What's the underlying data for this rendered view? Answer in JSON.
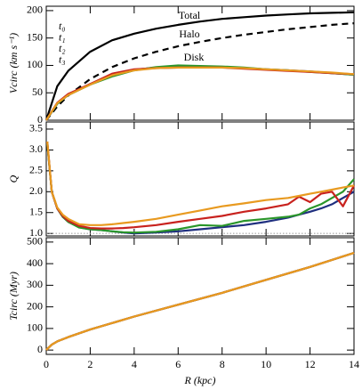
{
  "chart_data": [
    {
      "type": "line",
      "ylabel": "Vcirc (km s⁻¹)",
      "xlim": [
        0,
        14
      ],
      "xticks": [
        0,
        2,
        4,
        6,
        8,
        10,
        12,
        14
      ],
      "ylim": [
        0,
        208
      ],
      "yticks": [
        0,
        50,
        100,
        150,
        200
      ],
      "legend": "upper left",
      "annotations": [
        "Disk"
      ],
      "x": [
        0,
        0.5,
        1,
        2,
        3,
        4,
        5,
        6,
        7,
        8,
        9,
        10,
        11,
        12,
        13,
        14
      ],
      "series": [
        {
          "name": "Total",
          "color": "#000000",
          "dash": false,
          "values": [
            0,
            62,
            90,
            125,
            146,
            158,
            167,
            174,
            180,
            185,
            188,
            191,
            193,
            195,
            196,
            197
          ]
        },
        {
          "name": "Halo",
          "color": "#000000",
          "dash": true,
          "values": [
            0,
            25,
            45,
            75,
            97,
            113,
            125,
            135,
            143,
            150,
            156,
            161,
            166,
            170,
            174,
            177
          ]
        },
        {
          "name": "t₀",
          "color": "#1f2f7f",
          "values": [
            0,
            30,
            46,
            66,
            82,
            92,
            96,
            97,
            97,
            97,
            95,
            93,
            91,
            89,
            86,
            83
          ]
        },
        {
          "name": "t₁",
          "color": "#2a962a",
          "values": [
            0,
            30,
            46,
            65,
            80,
            91,
            97,
            100,
            99,
            98,
            96,
            93,
            91,
            88,
            86,
            83
          ]
        },
        {
          "name": "t₂",
          "color": "#c8221e",
          "values": [
            0,
            32,
            48,
            66,
            85,
            93,
            95,
            96,
            96,
            96,
            94,
            92,
            90,
            88,
            86,
            84
          ]
        },
        {
          "name": "t₃",
          "color": "#e89a20",
          "values": [
            0,
            31,
            46,
            65,
            82,
            91,
            95,
            96,
            96,
            96,
            95,
            93,
            91,
            89,
            87,
            84
          ]
        }
      ]
    },
    {
      "type": "line",
      "ylabel": "Q",
      "xlim": [
        0,
        14
      ],
      "xticks": [
        0,
        2,
        4,
        6,
        8,
        10,
        12,
        14
      ],
      "ylim": [
        0.94,
        3.67
      ],
      "yticks": [
        {
          "value": 1,
          "label": "1.0"
        },
        1.5,
        {
          "value": 2,
          "label": "2.0"
        },
        2.5,
        {
          "value": 3,
          "label": "3.0"
        },
        3.5
      ],
      "hline": 1,
      "x": [
        0.05,
        0.25,
        0.5,
        0.75,
        1,
        1.5,
        2,
        2.5,
        3,
        3.5,
        4,
        5,
        6,
        7,
        8,
        9,
        10,
        11,
        11.5,
        12,
        12.5,
        13,
        13.5,
        14
      ],
      "series": [
        {
          "color": "#1f2f7f",
          "values": [
            3.15,
            2.0,
            1.6,
            1.4,
            1.28,
            1.15,
            1.1,
            1.08,
            1.05,
            1.02,
            1.0,
            1.02,
            1.05,
            1.1,
            1.15,
            1.2,
            1.28,
            1.38,
            1.45,
            1.52,
            1.6,
            1.7,
            1.85,
            2.0
          ]
        },
        {
          "color": "#2a962a",
          "values": [
            3.15,
            2.0,
            1.6,
            1.4,
            1.28,
            1.14,
            1.1,
            1.08,
            1.05,
            1.03,
            1.02,
            1.04,
            1.1,
            1.2,
            1.18,
            1.3,
            1.35,
            1.4,
            1.45,
            1.6,
            1.7,
            1.85,
            2.0,
            2.3
          ]
        },
        {
          "color": "#c8221e",
          "values": [
            3.2,
            2.0,
            1.6,
            1.42,
            1.3,
            1.18,
            1.13,
            1.12,
            1.12,
            1.13,
            1.15,
            1.2,
            1.28,
            1.35,
            1.42,
            1.52,
            1.6,
            1.7,
            1.88,
            1.75,
            1.95,
            2.0,
            1.65,
            2.15
          ]
        },
        {
          "color": "#e89a20",
          "values": [
            3.2,
            2.0,
            1.62,
            1.45,
            1.35,
            1.22,
            1.2,
            1.2,
            1.22,
            1.25,
            1.28,
            1.35,
            1.45,
            1.55,
            1.65,
            1.72,
            1.8,
            1.85,
            1.9,
            1.95,
            2.0,
            2.05,
            2.1,
            2.15
          ]
        }
      ]
    },
    {
      "type": "line",
      "ylabel": "Tcirc (Myr)",
      "xlabel": "R (kpc)",
      "xlim": [
        0,
        14
      ],
      "xticks": [
        0,
        2,
        4,
        6,
        8,
        10,
        12,
        14
      ],
      "ylim": [
        -20,
        520
      ],
      "yticks": [
        0,
        100,
        200,
        300,
        400,
        500
      ],
      "x": [
        0,
        0.25,
        0.5,
        1,
        2,
        4,
        6,
        8,
        10,
        12,
        14
      ],
      "series": [
        {
          "color": "#1f2f7f",
          "values": [
            0,
            25,
            40,
            60,
            95,
            155,
            210,
            265,
            325,
            385,
            450
          ]
        },
        {
          "color": "#2a962a",
          "values": [
            0,
            25,
            40,
            60,
            95,
            155,
            210,
            265,
            325,
            385,
            450
          ]
        },
        {
          "color": "#c8221e",
          "values": [
            0,
            25,
            40,
            60,
            95,
            155,
            210,
            265,
            325,
            385,
            450
          ]
        },
        {
          "color": "#e89a20",
          "values": [
            0,
            25,
            40,
            60,
            95,
            155,
            210,
            265,
            325,
            385,
            450
          ]
        }
      ]
    }
  ]
}
